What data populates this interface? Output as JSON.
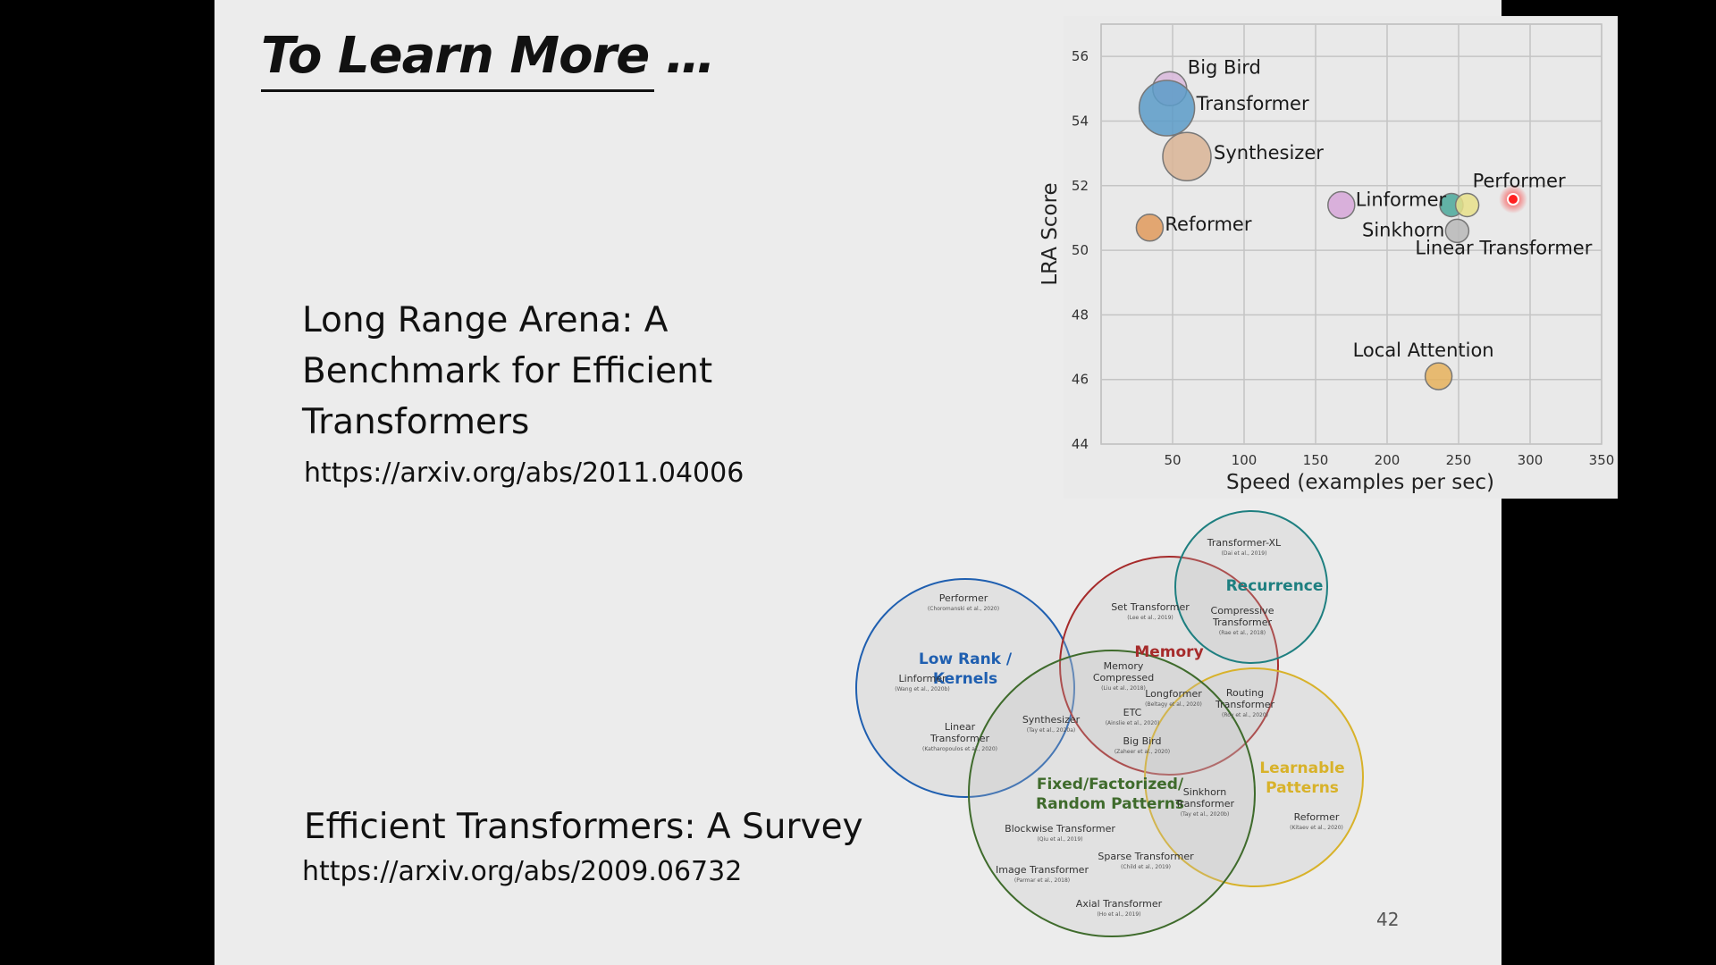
{
  "slide": {
    "title": "To Learn More …",
    "page_number": "42"
  },
  "papers": [
    {
      "title": "Long Range Arena: A\nBenchmark for Efficient\nTransformers",
      "link": "https://arxiv.org/abs/2011.04006"
    },
    {
      "title": "Efficient Transformers: A Survey",
      "link": "https://arxiv.org/abs/2009.06732"
    }
  ],
  "colors": {
    "slide_bg": "#ececec",
    "pointer": "#ff2020",
    "low_rank": "#1f5fb0",
    "memory": "#a62b2b",
    "recurrence": "#1e7f80",
    "learnable": "#d8b22a",
    "fixed": "#3f6b2c"
  },
  "chart_data": {
    "type": "scatter",
    "xlabel": "Speed (examples per sec)",
    "ylabel": "LRA Score",
    "xlim": [
      0,
      350
    ],
    "ylim": [
      44,
      57
    ],
    "xticks": [
      50,
      100,
      150,
      200,
      250,
      300,
      350
    ],
    "yticks": [
      44,
      46,
      48,
      50,
      52,
      54,
      56
    ],
    "grid": true,
    "points": [
      {
        "label": "Big Bird",
        "x": 48,
        "y": 55.0,
        "size": 3,
        "color": "#d9b8dc"
      },
      {
        "label": "Transformer",
        "x": 46,
        "y": 54.4,
        "size": 6,
        "color": "#5b9bc8"
      },
      {
        "label": "Synthesizer",
        "x": 60,
        "y": 52.9,
        "size": 5,
        "color": "#d9b495"
      },
      {
        "label": "Reformer",
        "x": 34,
        "y": 50.7,
        "size": 2,
        "color": "#e09a5c"
      },
      {
        "label": "Linformer",
        "x": 168,
        "y": 51.4,
        "size": 2,
        "color": "#d6a6d8"
      },
      {
        "label": "Sinkhorn",
        "x": 245,
        "y": 51.4,
        "size": 1.5,
        "color": "#4aa89a"
      },
      {
        "label": "Performer",
        "x": 256,
        "y": 51.4,
        "size": 1.5,
        "color": "#e8e08a"
      },
      {
        "label": "Linear Transformer",
        "x": 249,
        "y": 50.6,
        "size": 1.5,
        "color": "#b8b8b8"
      },
      {
        "label": "Local Attention",
        "x": 236,
        "y": 46.1,
        "size": 2,
        "color": "#e6b25c"
      }
    ]
  },
  "venn": {
    "groups": [
      {
        "name": "Low Rank /\nKernels",
        "color": "#1f5fb0"
      },
      {
        "name": "Memory",
        "color": "#a62b2b"
      },
      {
        "name": "Recurrence",
        "color": "#1e7f80"
      },
      {
        "name": "Learnable\nPatterns",
        "color": "#d8b22a"
      },
      {
        "name": "Fixed/Factorized/\nRandom Patterns",
        "color": "#3f6b2c"
      }
    ],
    "models": [
      {
        "name": "Performer",
        "cite": "(Choromanski et al., 2020)"
      },
      {
        "name": "Linformer",
        "cite": "(Wang et al., 2020b)"
      },
      {
        "name": "Linear\nTransformer",
        "cite": "(Katharopoulos et al., 2020)"
      },
      {
        "name": "Synthesizer",
        "cite": "(Tay et al., 2020a)"
      },
      {
        "name": "Set Transformer",
        "cite": "(Lee et al., 2019)"
      },
      {
        "name": "Memory\nCompressed",
        "cite": "(Liu et al., 2018)"
      },
      {
        "name": "Longformer",
        "cite": "(Beltagy et al., 2020)"
      },
      {
        "name": "ETC",
        "cite": "(Ainslie et al., 2020)"
      },
      {
        "name": "Big Bird",
        "cite": "(Zaheer et al., 2020)"
      },
      {
        "name": "Transformer-XL",
        "cite": "(Dai et al., 2019)"
      },
      {
        "name": "Compressive\nTransformer",
        "cite": "(Rae et al., 2018)"
      },
      {
        "name": "Routing\nTransformer",
        "cite": "(Roy et al., 2020)"
      },
      {
        "name": "Sinkhorn\nTransformer",
        "cite": "(Tay et al., 2020b)"
      },
      {
        "name": "Reformer",
        "cite": "(Kitaev et al., 2020)"
      },
      {
        "name": "Blockwise Transformer",
        "cite": "(Qiu et al., 2019)"
      },
      {
        "name": "Sparse Transformer",
        "cite": "(Child et al., 2019)"
      },
      {
        "name": "Image Transformer",
        "cite": "(Parmar et al., 2018)"
      },
      {
        "name": "Axial Transformer",
        "cite": "(Ho et al., 2019)"
      }
    ]
  }
}
